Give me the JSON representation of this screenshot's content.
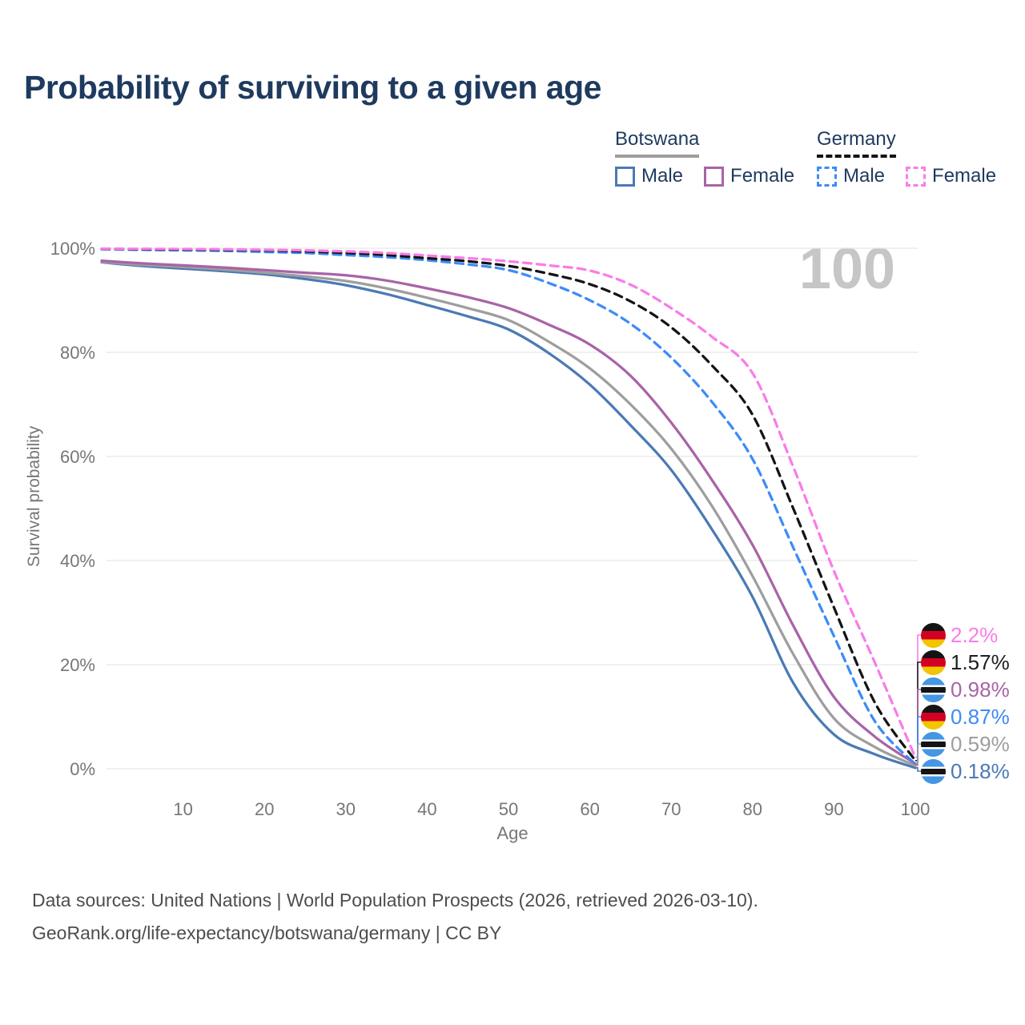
{
  "title": "Probability of surviving to a given age",
  "watermark": "100",
  "colors": {
    "navy": "#1e3a5e",
    "axis": "#767676",
    "grid": "#e7e7e7",
    "watermark": "#c6c6c6",
    "footer": "#4d4d4d"
  },
  "legend": {
    "groups": [
      {
        "country": "Botswana",
        "style": "solid",
        "underline_color": "#9e9e9e",
        "items": [
          {
            "label": "Male",
            "color": "#4a7ab5",
            "dashed": false
          },
          {
            "label": "Female",
            "color": "#a963a7",
            "dashed": false
          }
        ]
      },
      {
        "country": "Germany",
        "style": "dashed",
        "underline_color": "#141414",
        "items": [
          {
            "label": "Male",
            "color": "#3d8bf8",
            "dashed": true
          },
          {
            "label": "Female",
            "color": "#f97ce9",
            "dashed": true
          }
        ]
      }
    ]
  },
  "chart_data": {
    "type": "line",
    "title": "Probability of surviving to a given age",
    "xlabel": "Age",
    "ylabel": "Survival probability",
    "xlim": [
      0,
      100
    ],
    "ylim": [
      0,
      100
    ],
    "grid": "horizontal",
    "x_ticks": [
      10,
      20,
      30,
      40,
      50,
      60,
      70,
      80,
      90,
      100
    ],
    "y_ticks": [
      {
        "value": 0,
        "label": "0%"
      },
      {
        "value": 20,
        "label": "20%"
      },
      {
        "value": 40,
        "label": "40%"
      },
      {
        "value": 60,
        "label": "60%"
      },
      {
        "value": 80,
        "label": "80%"
      },
      {
        "value": 100,
        "label": "100%"
      }
    ],
    "ages": [
      0,
      5,
      10,
      15,
      20,
      25,
      30,
      35,
      40,
      45,
      50,
      55,
      60,
      65,
      70,
      75,
      80,
      85,
      90,
      95,
      100
    ],
    "series": [
      {
        "id": "botswana-male",
        "name": "Botswana Male",
        "color": "#4a7ab5",
        "dashed": false,
        "values": [
          97.3,
          96.6,
          96.1,
          95.6,
          95.0,
          94.1,
          92.9,
          91.2,
          89.1,
          86.9,
          84.4,
          79.8,
          73.8,
          66.0,
          57.4,
          46.0,
          33.0,
          16.5,
          6.6,
          2.8,
          0.18
        ]
      },
      {
        "id": "botswana-combined",
        "name": "Botswana (both sexes)",
        "color": "#9e9e9e",
        "dashed": false,
        "values": [
          97.4,
          96.8,
          96.4,
          95.9,
          95.3,
          94.6,
          93.7,
          92.3,
          90.5,
          88.5,
          86.2,
          82.0,
          76.9,
          70.0,
          61.5,
          50.5,
          37.0,
          22.0,
          9.7,
          4.2,
          0.59
        ]
      },
      {
        "id": "botswana-female",
        "name": "Botswana Female",
        "color": "#a963a7",
        "dashed": false,
        "values": [
          97.6,
          97.1,
          96.7,
          96.3,
          95.8,
          95.3,
          94.8,
          93.8,
          92.3,
          90.6,
          88.5,
          85.3,
          81.5,
          75.5,
          66.5,
          55.5,
          43.0,
          27.5,
          13.8,
          6.2,
          0.98
        ]
      },
      {
        "id": "germany-male",
        "name": "Germany Male",
        "color": "#3d8bf8",
        "dashed": true,
        "values": [
          99.8,
          99.7,
          99.6,
          99.5,
          99.3,
          99.1,
          98.7,
          98.3,
          97.7,
          96.9,
          95.8,
          93.3,
          90.0,
          85.5,
          79.0,
          70.5,
          59.5,
          42.5,
          25.5,
          9.2,
          0.87
        ]
      },
      {
        "id": "germany-combined",
        "name": "Germany (both sexes)",
        "color": "#141414",
        "dashed": true,
        "values": [
          99.9,
          99.8,
          99.75,
          99.7,
          99.6,
          99.4,
          99.1,
          98.7,
          98.1,
          97.5,
          96.6,
          95.1,
          93.1,
          89.8,
          84.8,
          77.5,
          68.0,
          50.0,
          31.0,
          12.8,
          1.57
        ]
      },
      {
        "id": "germany-female",
        "name": "Germany Female",
        "color": "#f97ce9",
        "dashed": true,
        "values": [
          99.9,
          99.88,
          99.85,
          99.8,
          99.7,
          99.6,
          99.4,
          99.1,
          98.6,
          98.1,
          97.5,
          96.7,
          95.7,
          93.0,
          88.5,
          83.0,
          76.0,
          58.0,
          38.0,
          20.5,
          2.2
        ]
      }
    ],
    "end_labels": [
      {
        "series_index": 5,
        "label": "2.2%",
        "color": "#f97ce9",
        "flag": "germany"
      },
      {
        "series_index": 4,
        "label": "1.57%",
        "color": "#1f1f1f",
        "flag": "germany"
      },
      {
        "series_index": 2,
        "label": "0.98%",
        "color": "#a963a7",
        "flag": "botswana"
      },
      {
        "series_index": 3,
        "label": "0.87%",
        "color": "#3d8bf8",
        "flag": "germany"
      },
      {
        "series_index": 1,
        "label": "0.59%",
        "color": "#9e9e9e",
        "flag": "botswana"
      },
      {
        "series_index": 0,
        "label": "0.18%",
        "color": "#4a7ab5",
        "flag": "botswana"
      }
    ]
  },
  "footer": {
    "line1": "Data sources: United Nations | World Population Prospects (2026, retrieved 2026-03-10).",
    "line2": "GeoRank.org/life-expectancy/botswana/germany | CC BY"
  }
}
